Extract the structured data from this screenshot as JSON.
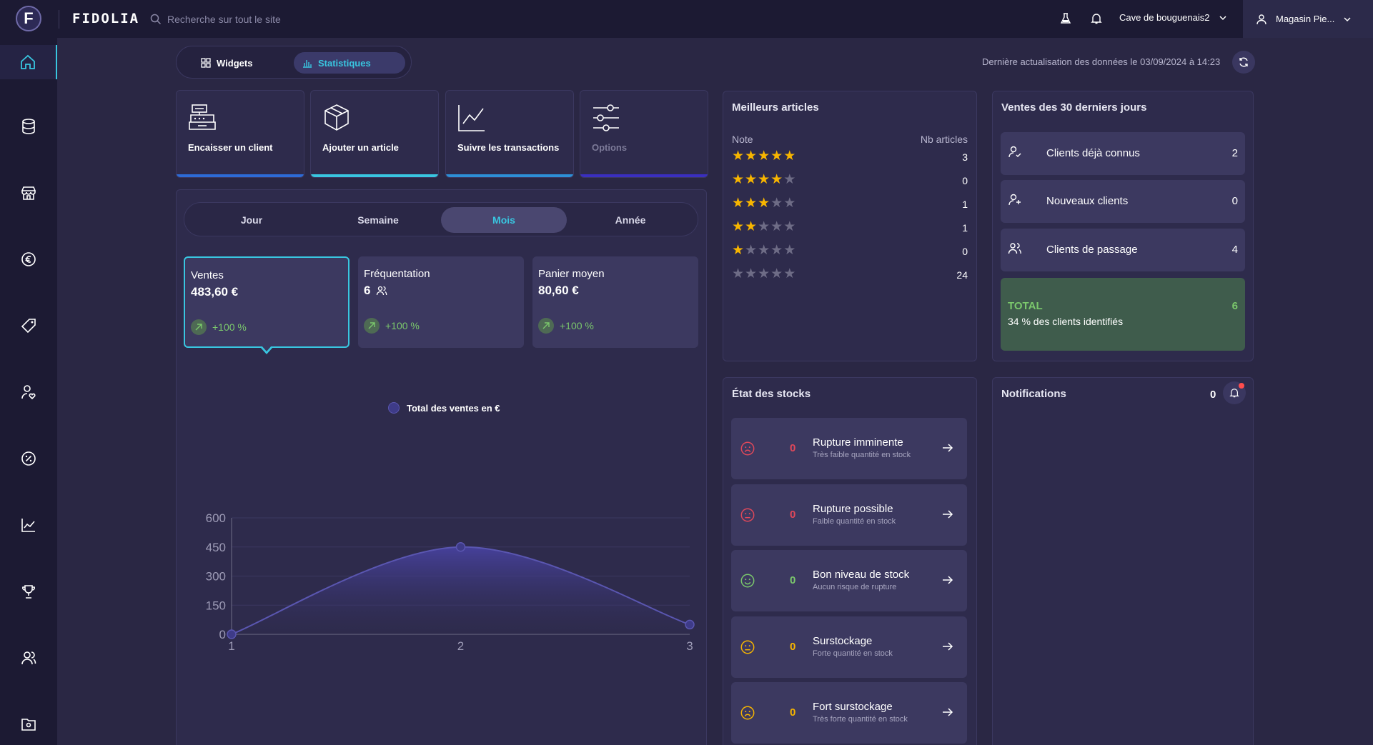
{
  "header": {
    "logo_letter": "F",
    "brand": "FIDOLIA",
    "search_placeholder": "Recherche sur tout le site",
    "store_name": "Cave de bouguenais2",
    "user_name": "Magasin Pie..."
  },
  "sidebar": {
    "items": [
      {
        "icon": "home-icon",
        "active": true
      },
      {
        "icon": "database-icon"
      },
      {
        "icon": "store-icon"
      },
      {
        "icon": "euro-icon"
      },
      {
        "icon": "tag-icon"
      },
      {
        "icon": "user-heart-icon"
      },
      {
        "icon": "discount-icon"
      },
      {
        "icon": "chart-line-icon"
      },
      {
        "icon": "trophy-icon"
      },
      {
        "icon": "users-icon"
      },
      {
        "icon": "folder-settings-icon"
      }
    ]
  },
  "view_toggle": {
    "widgets_label": "Widgets",
    "stats_label": "Statistiques",
    "active": "stats"
  },
  "last_update": "Dernière actualisation des données le 03/09/2024 à 14:23",
  "shortcuts": [
    {
      "label": "Encaisser un client",
      "icon": "cash-register-icon",
      "bar_color": "#2d6bd6",
      "disabled": false
    },
    {
      "label": "Ajouter un article",
      "icon": "box-icon",
      "bar_color": "#39c6e0",
      "disabled": false
    },
    {
      "label": "Suivre les transactions",
      "icon": "chart-line-icon",
      "bar_color": "#2d8fd6",
      "disabled": false
    },
    {
      "label": "Options",
      "icon": "sliders-icon",
      "bar_color": "#3a2fbf",
      "disabled": true
    }
  ],
  "periods": {
    "items": [
      "Jour",
      "Semaine",
      "Mois",
      "Année"
    ],
    "active": "Mois"
  },
  "kpis": [
    {
      "title": "Ventes",
      "value": "483,60 €",
      "trend": "+100 %",
      "active": true,
      "users_icon": false
    },
    {
      "title": "Fréquentation",
      "value": "6",
      "trend": "+100 %",
      "active": false,
      "users_icon": true
    },
    {
      "title": "Panier moyen",
      "value": "80,60 €",
      "trend": "+100 %",
      "active": false,
      "users_icon": false
    }
  ],
  "chart_data": {
    "type": "area",
    "x": [
      1,
      2,
      3
    ],
    "series": [
      {
        "name": "Total des ventes en €",
        "values": [
          0,
          450,
          50
        ]
      }
    ],
    "yticks": [
      0,
      150,
      300,
      450,
      600
    ],
    "ylim": [
      0,
      600
    ],
    "xlabel": "",
    "ylabel": "",
    "title": "",
    "grid": true,
    "legend": "top-center",
    "color": "#5a56b0"
  },
  "best_articles": {
    "title": "Meilleurs articles",
    "col_note": "Note",
    "col_count": "Nb articles",
    "rows": [
      {
        "stars": 5,
        "count": "3"
      },
      {
        "stars": 4,
        "count": "0"
      },
      {
        "stars": 3,
        "count": "1"
      },
      {
        "stars": 2,
        "count": "1"
      },
      {
        "stars": 1,
        "count": "0"
      },
      {
        "stars": 0,
        "count": "24"
      }
    ]
  },
  "sales30": {
    "title": "Ventes des 30 derniers jours",
    "rows": [
      {
        "label": "Clients déjà connus",
        "count": "2",
        "icon": "user-check-icon"
      },
      {
        "label": "Nouveaux clients",
        "count": "0",
        "icon": "user-plus-icon"
      },
      {
        "label": "Clients de passage",
        "count": "4",
        "icon": "users-icon"
      }
    ],
    "total_label": "TOTAL",
    "total_value": "6",
    "total_sub": "34 % des clients identifiés"
  },
  "stock": {
    "title": "État des stocks",
    "rows": [
      {
        "title": "Rupture imminente",
        "sub": "Très faible quantité en stock",
        "count": "0",
        "color": "#e0485a",
        "mood": "sad"
      },
      {
        "title": "Rupture possible",
        "sub": "Faible quantité en stock",
        "count": "0",
        "color": "#e0485a",
        "mood": "meh"
      },
      {
        "title": "Bon niveau de stock",
        "sub": "Aucun risque de rupture",
        "count": "0",
        "color": "#7bc86c",
        "mood": "happy"
      },
      {
        "title": "Surstockage",
        "sub": "Forte quantité en stock",
        "count": "0",
        "color": "#f7b500",
        "mood": "meh"
      },
      {
        "title": "Fort surstockage",
        "sub": "Très forte quantité en stock",
        "count": "0",
        "color": "#f7b500",
        "mood": "sad"
      }
    ]
  },
  "notifications": {
    "title": "Notifications",
    "count": "0"
  }
}
